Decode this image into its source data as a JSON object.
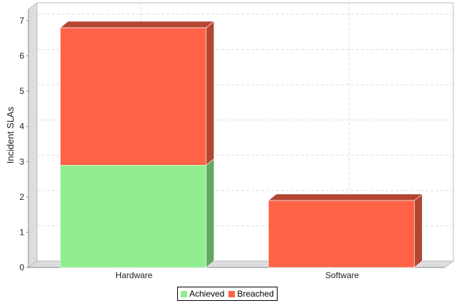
{
  "chart_data": {
    "type": "bar",
    "stacked": true,
    "three_d": true,
    "categories": [
      "Hardware",
      "Software"
    ],
    "series": [
      {
        "name": "Achieved",
        "values": [
          2.9,
          0
        ],
        "color": "#90ee90",
        "side_color": "#64a864"
      },
      {
        "name": "Breached",
        "values": [
          3.9,
          1.9
        ],
        "color": "#ff6347",
        "side_color": "#b34633"
      }
    ],
    "ylabel": "Incident SLAs",
    "xlabel": "",
    "ylim": [
      0,
      7
    ],
    "yticks": [
      0,
      1,
      2,
      3,
      4,
      5,
      6,
      7
    ],
    "grid": true,
    "legend_position": "bottom"
  }
}
